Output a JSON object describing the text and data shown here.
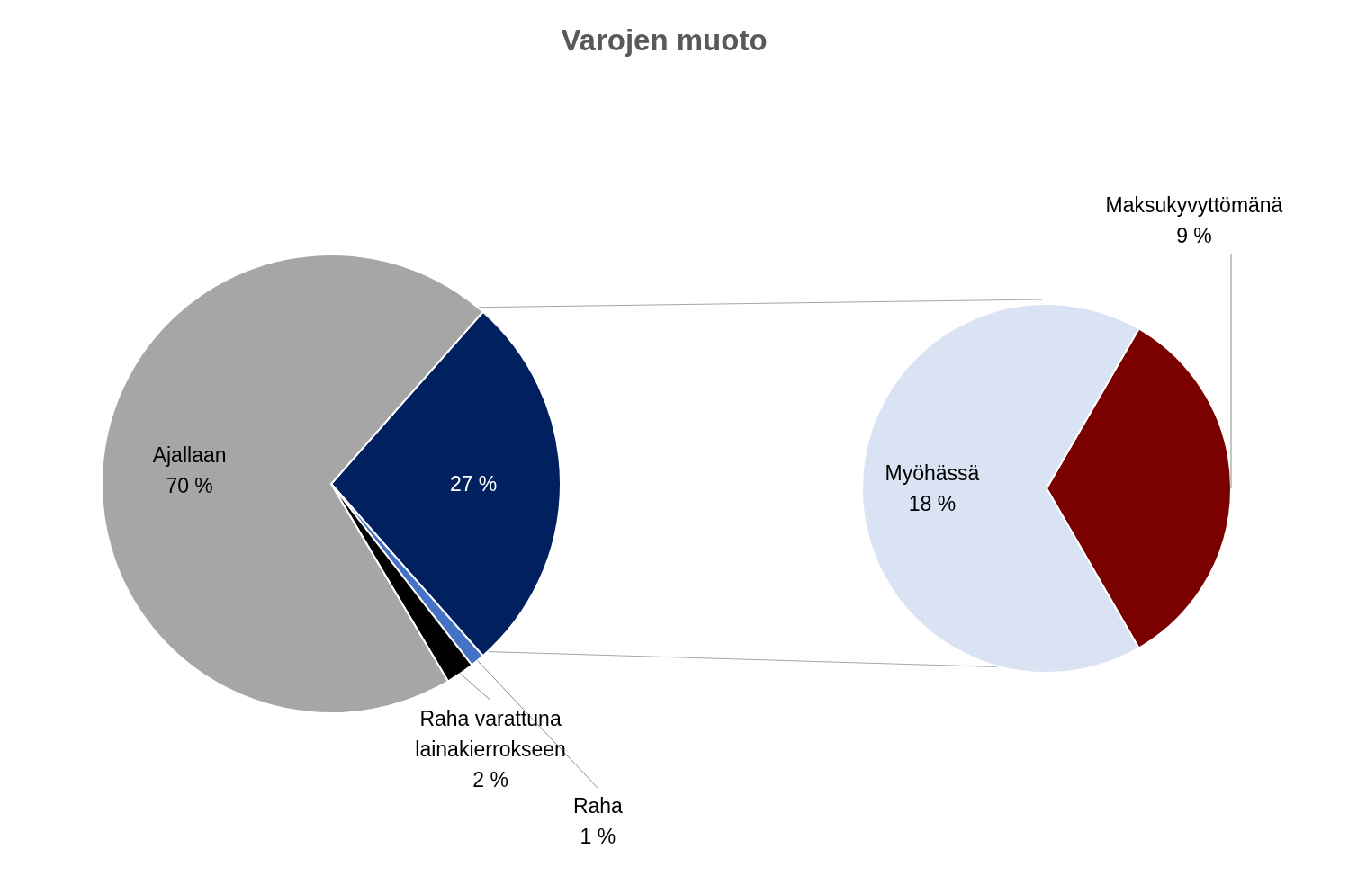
{
  "chart_data": [
    {
      "type": "pie",
      "title": "Varojen muoto",
      "categories": [
        null,
        "Raha",
        "Raha varattuna lainakierrokseen",
        "Ajallaan"
      ],
      "values": [
        27,
        1,
        2,
        70
      ],
      "colors": [
        "#002060",
        "#4472c4",
        "#000000",
        "#a6a6a6"
      ],
      "value_labels": [
        "27 %",
        "1 %",
        "2 %",
        "70 %"
      ]
    },
    {
      "type": "pie",
      "categories": [
        "Maksukyvyttömänä",
        "Myöhässä"
      ],
      "values": [
        9,
        18
      ],
      "colors": [
        "#7b0000",
        "#dae3f3"
      ],
      "value_labels": [
        "9 %",
        "18 %"
      ]
    }
  ]
}
